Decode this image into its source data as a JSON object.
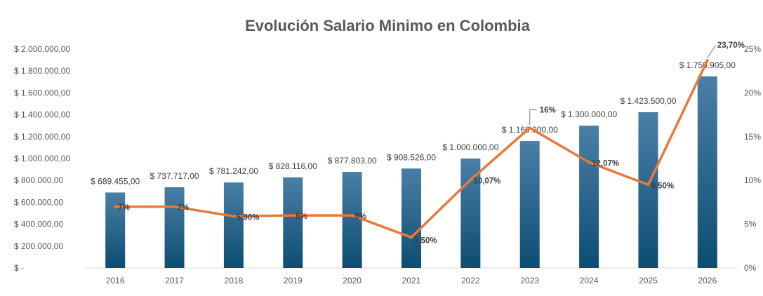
{
  "chart_data": {
    "type": "bar",
    "title": "Evolución Salario Minimo en Colombia",
    "categories": [
      "2016",
      "2017",
      "2018",
      "2019",
      "2020",
      "2021",
      "2022",
      "2023",
      "2024",
      "2025",
      "2026"
    ],
    "series": [
      {
        "type": "bar",
        "axis": "left",
        "values": [
          689455,
          737717,
          781242,
          828116,
          877803,
          908526,
          1000000,
          1160000,
          1300000,
          1423500,
          1750905
        ],
        "labels": [
          "$ 689.455,00",
          "$ 737.717,00",
          "$ 781.242,00",
          "$ 828.116,00",
          "$ 877.803,00",
          "$ 908.526,00",
          "$ 1.000.000,00",
          "$ 1.160.000,00",
          "$ 1.300.000,00",
          "$ 1.423.500,00",
          "$ 1.750.905,00"
        ],
        "color": "#1f5f85"
      },
      {
        "type": "line",
        "axis": "right",
        "values": [
          7,
          7,
          5.9,
          6,
          6,
          3.5,
          10.07,
          16,
          12.07,
          9.5,
          23.7
        ],
        "labels": [
          "7%",
          "7%",
          "5,90%",
          "6%",
          "6%",
          "3,50%",
          "10,07%",
          "16%",
          "12,07%",
          "9,50%",
          "23,70%"
        ],
        "color": "#e8793a"
      }
    ],
    "y_left": {
      "range": [
        0,
        2000000
      ],
      "ticks": [
        0,
        200000,
        400000,
        600000,
        800000,
        1000000,
        1200000,
        1400000,
        1600000,
        1800000,
        2000000
      ],
      "tick_labels": [
        "$ -",
        "$ 200.000,00",
        "$ 400.000,00",
        "$ 600.000,00",
        "$ 800.000,00",
        "$ 1.000.000,00",
        "$ 1.200.000,00",
        "$ 1.400.000,00",
        "$ 1.600.000,00",
        "$ 1.800.000,00",
        "$ 2.000.000,00"
      ]
    },
    "y_right": {
      "range": [
        0,
        25
      ],
      "ticks": [
        0,
        5,
        10,
        15,
        20,
        25
      ],
      "tick_labels": [
        "0%",
        "5%",
        "10%",
        "15%",
        "20%",
        "25%"
      ]
    },
    "grid": false,
    "legend": "none"
  }
}
